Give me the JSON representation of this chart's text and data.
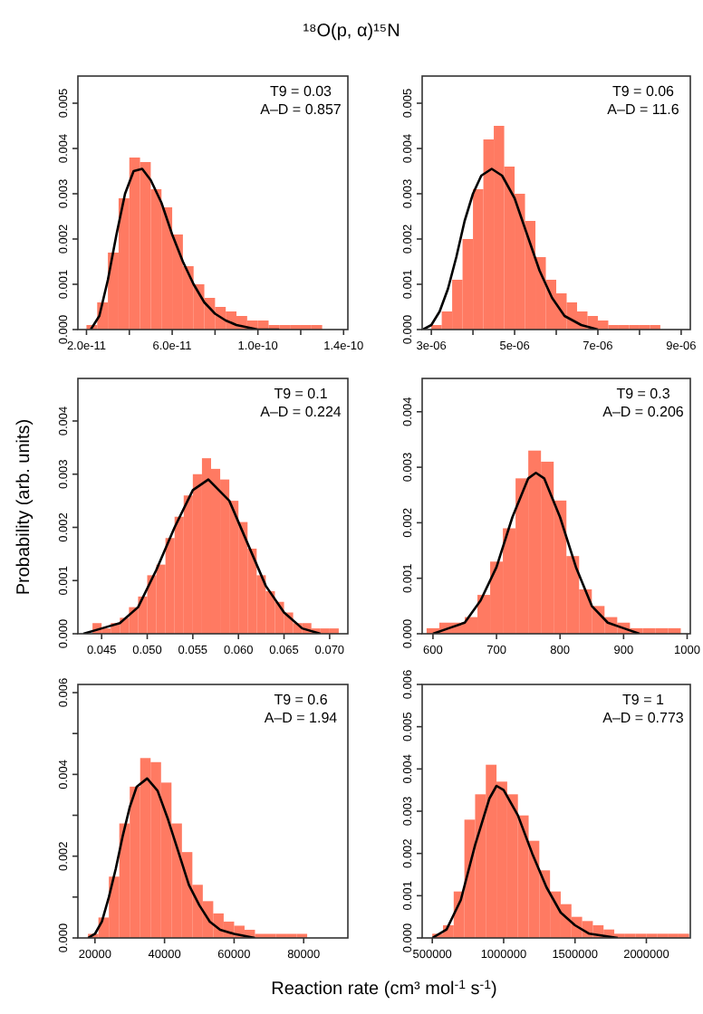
{
  "chart_data": [
    {
      "type": "histogram",
      "title": "¹⁸O(p, α)¹⁵N",
      "annotations": [
        "T9 = 0.03",
        "A–D = 0.857"
      ],
      "color": "#ff6347",
      "bins": [
        2e-11,
        2.5e-11,
        3e-11,
        3.5e-11,
        4e-11,
        4.5e-11,
        5e-11,
        5.5e-11,
        6e-11,
        6.5e-11,
        7e-11,
        7.5e-11,
        8e-11,
        8.5e-11,
        9e-11,
        9.5e-11,
        1e-10,
        1.05e-10,
        1.1e-10,
        1.15e-10,
        1.2e-10,
        1.25e-10,
        1.3e-10
      ],
      "values": [
        0.0001,
        0.0006,
        0.0017,
        0.0029,
        0.0038,
        0.0037,
        0.0031,
        0.0027,
        0.0021,
        0.0014,
        0.001,
        0.0007,
        0.0005,
        0.0004,
        0.0003,
        0.0002,
        0.0002,
        0.0001,
        0.0001,
        0.0001,
        0.0001,
        0.0001
      ],
      "series": [
        {
          "type": "line",
          "color": "#000000",
          "x": [
            2.2e-11,
            2.6e-11,
            3e-11,
            3.4e-11,
            3.8e-11,
            4.2e-11,
            4.6e-11,
            5e-11,
            5.5e-11,
            6e-11,
            6.5e-11,
            7e-11,
            7.5e-11,
            8e-11,
            8.5e-11,
            9e-11,
            1e-10,
            1.1e-10
          ],
          "values": [
            0,
            0.0003,
            0.0011,
            0.0021,
            0.003,
            0.0035,
            0.00355,
            0.0033,
            0.0028,
            0.0021,
            0.0015,
            0.001,
            0.0006,
            0.00035,
            0.0002,
            0.0001,
            0,
            0
          ]
        }
      ],
      "xlim": [
        1.6e-11,
        1.42e-10
      ],
      "xticks": [
        {
          "value": 2e-11,
          "label": "2.0e-11"
        },
        {
          "value": 4e-11,
          "label": null
        },
        {
          "value": 6e-11,
          "label": "6.0e-11"
        },
        {
          "value": 8e-11,
          "label": null
        },
        {
          "value": 1e-10,
          "label": "1.0e-10"
        },
        {
          "value": 1.2e-10,
          "label": null
        },
        {
          "value": 1.4e-10,
          "label": "1.4e-10"
        }
      ],
      "ylim": [
        0,
        0.0056
      ],
      "yticks": [
        {
          "value": 0,
          "label": "0.000"
        },
        {
          "value": 0.001,
          "label": "0.001"
        },
        {
          "value": 0.002,
          "label": "0.002"
        },
        {
          "value": 0.003,
          "label": "0.003"
        },
        {
          "value": 0.004,
          "label": "0.004"
        },
        {
          "value": 0.005,
          "label": "0.005"
        }
      ]
    },
    {
      "type": "histogram",
      "annotations": [
        "T9 = 0.06",
        "A–D = 11.6"
      ],
      "color": "#ff6347",
      "bins": [
        3e-06,
        3.25e-06,
        3.5e-06,
        3.75e-06,
        4e-06,
        4.25e-06,
        4.5e-06,
        4.75e-06,
        5e-06,
        5.25e-06,
        5.5e-06,
        5.75e-06,
        6e-06,
        6.25e-06,
        6.5e-06,
        6.75e-06,
        7e-06,
        7.25e-06,
        7.5e-06,
        7.75e-06,
        8e-06,
        8.25e-06,
        8.5e-06
      ],
      "values": [
        0.0001,
        0.0004,
        0.0011,
        0.002,
        0.0031,
        0.0042,
        0.0045,
        0.0036,
        0.003,
        0.0024,
        0.0016,
        0.0011,
        0.0008,
        0.0006,
        0.0004,
        0.0003,
        0.0002,
        0.0001,
        0.0001,
        0.0001,
        0.0001,
        0.0001
      ],
      "series": [
        {
          "type": "line",
          "color": "#000000",
          "x": [
            2.8e-06,
            3e-06,
            3.2e-06,
            3.4e-06,
            3.6e-06,
            3.8e-06,
            4e-06,
            4.2e-06,
            4.45e-06,
            4.7e-06,
            5e-06,
            5.3e-06,
            5.6e-06,
            5.9e-06,
            6.2e-06,
            6.6e-06,
            7e-06
          ],
          "values": [
            0,
            0.0001,
            0.0004,
            0.0009,
            0.0016,
            0.0024,
            0.003,
            0.0034,
            0.00355,
            0.0034,
            0.0029,
            0.0021,
            0.0013,
            0.0007,
            0.0003,
            0.0001,
            0
          ]
        }
      ],
      "xlim": [
        2.78e-06,
        9.22e-06
      ],
      "xticks": [
        {
          "value": 3e-06,
          "label": "3e-06"
        },
        {
          "value": 4e-06,
          "label": null
        },
        {
          "value": 5e-06,
          "label": "5e-06"
        },
        {
          "value": 6e-06,
          "label": null
        },
        {
          "value": 7e-06,
          "label": "7e-06"
        },
        {
          "value": 8e-06,
          "label": null
        },
        {
          "value": 9e-06,
          "label": "9e-06"
        }
      ],
      "ylim": [
        0,
        0.0056
      ],
      "yticks": [
        {
          "value": 0,
          "label": "0.000"
        },
        {
          "value": 0.001,
          "label": "0.001"
        },
        {
          "value": 0.002,
          "label": "0.002"
        },
        {
          "value": 0.003,
          "label": "0.003"
        },
        {
          "value": 0.004,
          "label": "0.004"
        },
        {
          "value": 0.005,
          "label": "0.005"
        }
      ]
    },
    {
      "type": "histogram",
      "ylabel": "Probability (arb. units)",
      "annotations": [
        "T9 = 0.1",
        "A–D = 0.224"
      ],
      "color": "#ff6347",
      "bins": [
        0.044,
        0.045,
        0.046,
        0.047,
        0.048,
        0.049,
        0.05,
        0.051,
        0.052,
        0.053,
        0.054,
        0.055,
        0.056,
        0.057,
        0.058,
        0.059,
        0.06,
        0.061,
        0.062,
        0.063,
        0.064,
        0.065,
        0.066,
        0.067,
        0.068,
        0.069,
        0.07,
        0.071
      ],
      "values": [
        0.0002,
        0.0001,
        0.0002,
        0.0003,
        0.0005,
        0.0007,
        0.0011,
        0.0013,
        0.0018,
        0.0022,
        0.0026,
        0.003,
        0.0033,
        0.0031,
        0.0029,
        0.0025,
        0.0021,
        0.0016,
        0.0011,
        0.0008,
        0.0006,
        0.0004,
        0.0002,
        0.0002,
        0.0001,
        0.0001,
        0.0001
      ],
      "series": [
        {
          "type": "line",
          "color": "#000000",
          "x": [
            0.043,
            0.045,
            0.047,
            0.049,
            0.051,
            0.053,
            0.055,
            0.0567,
            0.059,
            0.061,
            0.063,
            0.065,
            0.067,
            0.069
          ],
          "values": [
            0,
            0.0001,
            0.0002,
            0.0005,
            0.0012,
            0.002,
            0.0027,
            0.0029,
            0.0025,
            0.0017,
            0.0009,
            0.0004,
            0.0001,
            0
          ]
        }
      ],
      "xlim": [
        0.0424,
        0.072
      ],
      "xticks": [
        {
          "value": 0.045,
          "label": "0.045"
        },
        {
          "value": 0.05,
          "label": "0.050"
        },
        {
          "value": 0.055,
          "label": "0.055"
        },
        {
          "value": 0.06,
          "label": "0.060"
        },
        {
          "value": 0.065,
          "label": "0.065"
        },
        {
          "value": 0.07,
          "label": "0.070"
        }
      ],
      "ylim": [
        0,
        0.0048
      ],
      "yticks": [
        {
          "value": 0,
          "label": "0.000"
        },
        {
          "value": 0.001,
          "label": "0.001"
        },
        {
          "value": 0.002,
          "label": "0.002"
        },
        {
          "value": 0.003,
          "label": "0.003"
        },
        {
          "value": 0.004,
          "label": "0.004"
        }
      ]
    },
    {
      "type": "histogram",
      "annotations": [
        "T9 = 0.3",
        "A–D = 0.206"
      ],
      "color": "#ff6347",
      "bins": [
        590,
        610,
        630,
        650,
        670,
        690,
        710,
        730,
        750,
        770,
        790,
        810,
        830,
        850,
        870,
        890,
        910,
        930,
        950,
        970,
        990
      ],
      "values": [
        0.0001,
        0.0002,
        0.0002,
        0.0003,
        0.0007,
        0.0013,
        0.0019,
        0.0028,
        0.0033,
        0.0031,
        0.0024,
        0.0014,
        0.0008,
        0.0005,
        0.0003,
        0.0002,
        0.0001,
        0.0001,
        0.0001,
        0.0001
      ],
      "series": [
        {
          "type": "line",
          "color": "#000000",
          "x": [
            600,
            625,
            650,
            675,
            700,
            725,
            750,
            762,
            775,
            800,
            825,
            850,
            875,
            900,
            925
          ],
          "values": [
            0,
            0.0001,
            0.0002,
            0.0006,
            0.0012,
            0.0021,
            0.0028,
            0.0029,
            0.0028,
            0.0021,
            0.0012,
            0.0005,
            0.0002,
            0.0001,
            0
          ]
        }
      ],
      "xlim": [
        583,
        1005
      ],
      "xticks": [
        600,
        700,
        800,
        900,
        1000
      ],
      "ylim": [
        0,
        0.0046
      ],
      "yticks": [
        {
          "value": 0,
          "label": "0.000"
        },
        {
          "value": 0.001,
          "label": "0.001"
        },
        {
          "value": 0.002,
          "label": "0.002"
        },
        {
          "value": 0.003,
          "label": "0.003"
        },
        {
          "value": 0.004,
          "label": "0.004"
        }
      ]
    },
    {
      "type": "histogram",
      "xlabel": "Reaction rate (cm³ mol$^{-1}$ s$^{-1}$)",
      "annotations": [
        "T9 = 0.6",
        "A–D = 1.94"
      ],
      "color": "#ff6347",
      "bins": [
        18000,
        21000,
        24000,
        27000,
        30000,
        33000,
        36000,
        39000,
        42000,
        45000,
        48000,
        51000,
        54000,
        57000,
        60000,
        63000,
        66000,
        69000,
        72000,
        75000,
        78000,
        81000
      ],
      "values": [
        0.0001,
        0.0005,
        0.0015,
        0.0028,
        0.0037,
        0.0044,
        0.0043,
        0.0038,
        0.0028,
        0.0021,
        0.0013,
        0.0009,
        0.0006,
        0.0004,
        0.0003,
        0.0002,
        0.0001,
        0.0001,
        0.0001,
        0.0001,
        0.0001
      ],
      "series": [
        {
          "type": "line",
          "color": "#000000",
          "x": [
            18000,
            20000,
            22000,
            24000,
            26000,
            28000,
            30000,
            32000,
            35000,
            38000,
            41000,
            44000,
            47000,
            50000,
            53000,
            56000,
            60000,
            66000
          ],
          "values": [
            0,
            0.0001,
            0.0004,
            0.001,
            0.0017,
            0.0025,
            0.0032,
            0.0037,
            0.0039,
            0.0036,
            0.0029,
            0.0021,
            0.0013,
            0.0008,
            0.0004,
            0.0002,
            0.0001,
            0
          ]
        }
      ],
      "xlim": [
        15100,
        92700
      ],
      "xticks": [
        20000,
        40000,
        60000,
        80000
      ],
      "ylim": [
        0,
        0.0062
      ],
      "yticks": [
        {
          "value": 0,
          "label": "0.000"
        },
        {
          "value": 0.001,
          "label": null
        },
        {
          "value": 0.002,
          "label": "0.002"
        },
        {
          "value": 0.003,
          "label": null
        },
        {
          "value": 0.004,
          "label": "0.004"
        },
        {
          "value": 0.005,
          "label": null
        },
        {
          "value": 0.006,
          "label": "0.006"
        }
      ]
    },
    {
      "type": "histogram",
      "annotations": [
        "T9 = 1",
        "A–D = 0.773"
      ],
      "color": "#ff6347",
      "bins": [
        500000,
        575000,
        650000,
        725000,
        800000,
        875000,
        950000,
        1025000,
        1100000,
        1175000,
        1250000,
        1325000,
        1400000,
        1475000,
        1550000,
        1625000,
        1700000,
        1775000,
        1850000,
        1925000,
        2000000,
        2075000,
        2150000,
        2225000,
        2300000
      ],
      "values": [
        0.0001,
        0.0003,
        0.0011,
        0.0028,
        0.0034,
        0.0041,
        0.0037,
        0.0034,
        0.0029,
        0.0023,
        0.0016,
        0.0011,
        0.0008,
        0.0005,
        0.0004,
        0.0003,
        0.0002,
        0.0001,
        0.0001,
        0.0001,
        0.0001,
        0.0001,
        0.0001,
        0.0001
      ],
      "series": [
        {
          "type": "line",
          "color": "#000000",
          "x": [
            500000,
            600000,
            700000,
            800000,
            900000,
            950000,
            1000000,
            1100000,
            1200000,
            1300000,
            1400000,
            1500000,
            1600000,
            1800000
          ],
          "values": [
            0,
            0.0002,
            0.0009,
            0.0022,
            0.0033,
            0.0036,
            0.0035,
            0.0029,
            0.002,
            0.0012,
            0.0006,
            0.0003,
            0.0001,
            0
          ]
        }
      ],
      "xlim": [
        429000,
        2308000
      ],
      "xticks": [
        500000,
        1000000,
        1500000,
        2000000
      ],
      "ylim": [
        0,
        0.006
      ],
      "yticks": [
        {
          "value": 0,
          "label": "0.000"
        },
        {
          "value": 0.001,
          "label": "0.001"
        },
        {
          "value": 0.002,
          "label": "0.002"
        },
        {
          "value": 0.003,
          "label": "0.003"
        },
        {
          "value": 0.004,
          "label": "0.004"
        },
        {
          "value": 0.005,
          "label": "0.005"
        },
        {
          "value": 0.006,
          "label": "0.006"
        }
      ]
    }
  ]
}
